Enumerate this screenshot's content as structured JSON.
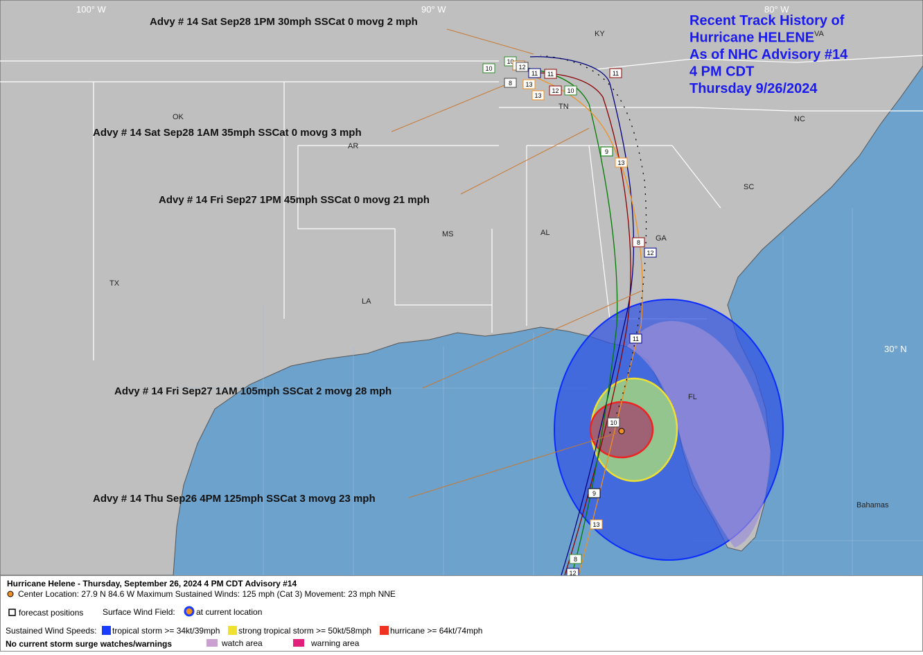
{
  "title": {
    "lines": [
      "Recent Track History of",
      "Hurricane HELENE",
      "As of NHC Advisory #14",
      "4 PM CDT",
      "Thursday 9/26/2024"
    ]
  },
  "grid_labels": [
    "100° W",
    "90° W",
    "80° W",
    "30° N"
  ],
  "place_labels": [
    "KY",
    "VA",
    "OK",
    "AR",
    "TN",
    "NC",
    "SC",
    "MS",
    "AL",
    "GA",
    "TX",
    "LA",
    "FL",
    "Bahamas"
  ],
  "advisories": [
    "Advy # 14 Sat Sep28 1PM  30mph SSCat 0 movg 2 mph",
    "Advy # 14 Sat Sep28 1AM  35mph SSCat 0 movg 3 mph",
    "Advy # 14 Fri Sep27 1PM  45mph SSCat 0 movg 21 mph",
    "Advy # 14 Fri Sep27 1AM  105mph SSCat 2 movg 28 mph",
    "Advy # 14 Thu Sep26 4PM  125mph SSCat 3 movg 23 mph"
  ],
  "track_labels": [
    "10",
    "10",
    "9",
    "12",
    "8",
    "13",
    "13",
    "11",
    "11",
    "11",
    "12",
    "10",
    "9",
    "13",
    "8",
    "12",
    "11",
    "10",
    "9",
    "13",
    "8",
    "12"
  ],
  "legend": {
    "heading": "Hurricane Helene  -  Thursday, September 26, 2024  4 PM CDT   Advisory #14",
    "center": "Center Location: 27.9 N  84.6 W  Maximum Sustained Winds: 125 mph (Cat 3) Movement: 23 mph NNE",
    "forecast": "forecast positions",
    "wind_field": "Surface Wind Field:",
    "current": "at current location",
    "speeds": "Sustained Wind Speeds:",
    "ts": "tropical storm >= 34kt/39mph",
    "sts": "strong tropical storm >= 50kt/58mph",
    "hu": "hurricane >= 64kt/74mph",
    "surge": "No current storm surge watches/warnings",
    "watch": "watch area",
    "warning": "warning area"
  }
}
